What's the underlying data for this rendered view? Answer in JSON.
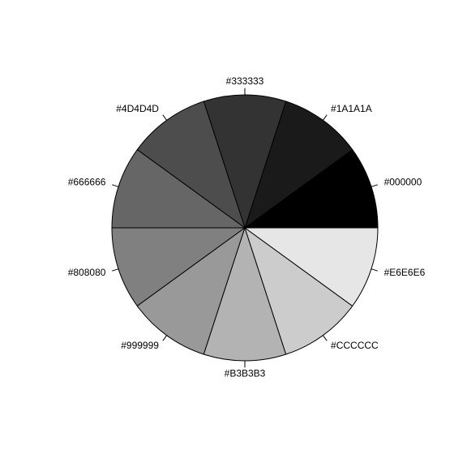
{
  "chart_data": {
    "type": "pie",
    "title": "",
    "direction": "counterclockwise",
    "start_angle_deg": 0,
    "slices": [
      {
        "label": "#000000",
        "value": 1,
        "color": "#000000"
      },
      {
        "label": "#1A1A1A",
        "value": 1,
        "color": "#1A1A1A"
      },
      {
        "label": "#333333",
        "value": 1,
        "color": "#333333"
      },
      {
        "label": "#4D4D4D",
        "value": 1,
        "color": "#4D4D4D"
      },
      {
        "label": "#666666",
        "value": 1,
        "color": "#666666"
      },
      {
        "label": "#808080",
        "value": 1,
        "color": "#808080"
      },
      {
        "label": "#999999",
        "value": 1,
        "color": "#999999"
      },
      {
        "label": "#B3B3B3",
        "value": 1,
        "color": "#B3B3B3"
      },
      {
        "label": "#CCCCCC",
        "value": 1,
        "color": "#CCCCCC"
      },
      {
        "label": "#E6E6E6",
        "value": 1,
        "color": "#E6E6E6"
      }
    ]
  }
}
